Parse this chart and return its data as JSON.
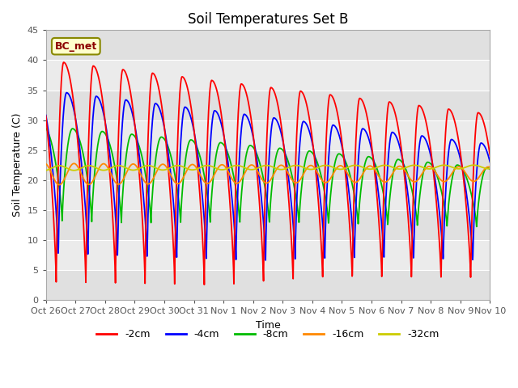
{
  "title": "Soil Temperatures Set B",
  "xlabel": "Time",
  "ylabel": "Soil Temperature (C)",
  "ylim": [
    0,
    45
  ],
  "xlim": [
    0,
    15
  ],
  "annotation": "BC_met",
  "legend_labels": [
    "-2cm",
    "-4cm",
    "-8cm",
    "-16cm",
    "-32cm"
  ],
  "legend_colors": [
    "#ff0000",
    "#0000ff",
    "#00bb00",
    "#ff8800",
    "#cccc00"
  ],
  "x_tick_labels": [
    "Oct 26",
    "Oct 27",
    "Oct 28",
    "Oct 29",
    "Oct 30",
    "Oct 31",
    "Nov 1",
    "Nov 2",
    "Nov 3",
    "Nov 4",
    "Nov 5",
    "Nov 6",
    "Nov 7",
    "Nov 8",
    "Nov 9",
    "Nov 10"
  ],
  "yticks": [
    0,
    5,
    10,
    15,
    20,
    25,
    30,
    35,
    40,
    45
  ],
  "title_fontsize": 12,
  "label_fontsize": 9,
  "tick_fontsize": 8,
  "fig_bg": "#ffffff",
  "plot_bg": "#ffffff",
  "band_colors": [
    "#e8e8e8",
    "#d8d8d8"
  ]
}
